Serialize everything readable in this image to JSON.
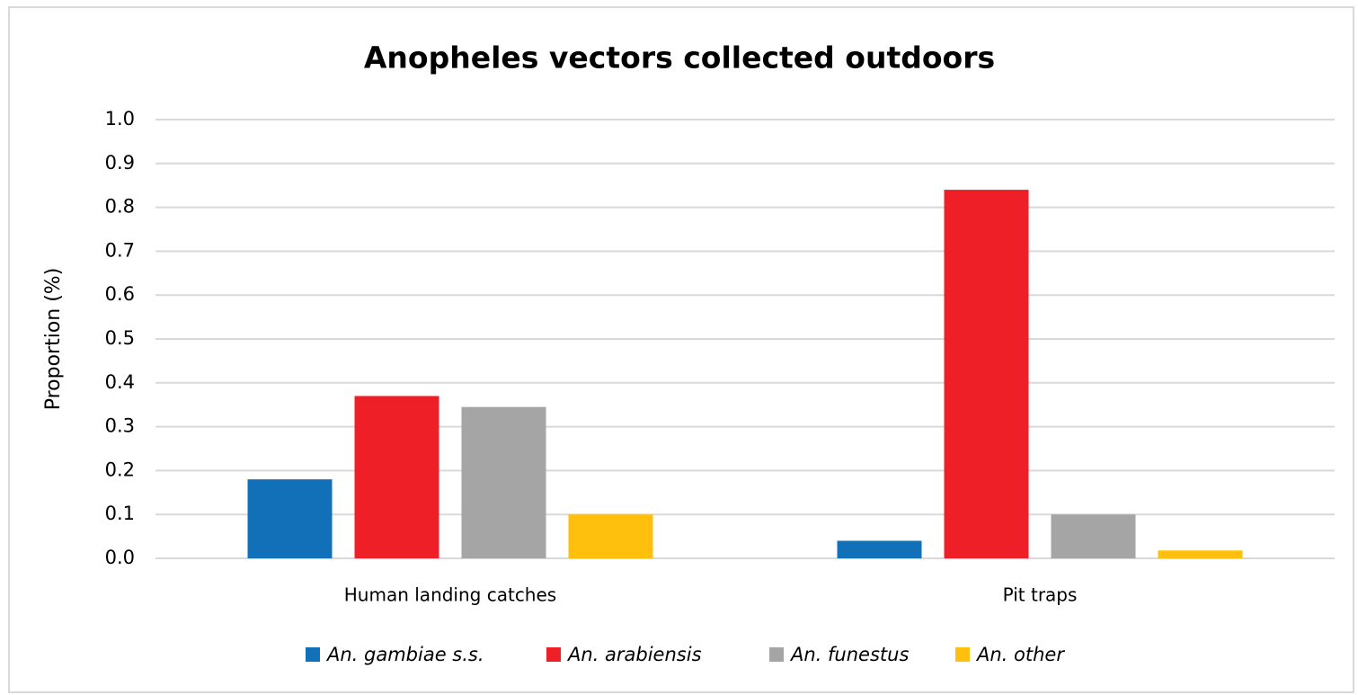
{
  "chart_data": {
    "type": "bar",
    "title": "Anopheles vectors collected outdoors",
    "y_label": "Proportion (%)",
    "categories": [
      "Human landing catches",
      "Pit traps"
    ],
    "series": [
      {
        "name": "An. gambiae s.s.",
        "color": "#1170b8",
        "values": [
          0.18,
          0.04
        ]
      },
      {
        "name": "An. arabiensis",
        "color": "#ee1f27",
        "values": [
          0.37,
          0.84
        ]
      },
      {
        "name": "An. funestus",
        "color": "#a5a5a5",
        "values": [
          0.345,
          0.1
        ]
      },
      {
        "name": "An. other",
        "color": "#ffc00d",
        "values": [
          0.1,
          0.018
        ]
      }
    ],
    "ylim": [
      0,
      1
    ],
    "yticks": [
      {
        "value": 0,
        "label": "0.0"
      },
      0.1,
      0.2,
      0.3,
      0.4,
      0.5,
      0.6,
      0.7,
      0.8,
      0.9,
      {
        "value": 1,
        "label": "1.0"
      }
    ],
    "grid": true,
    "legend": "bottom"
  }
}
